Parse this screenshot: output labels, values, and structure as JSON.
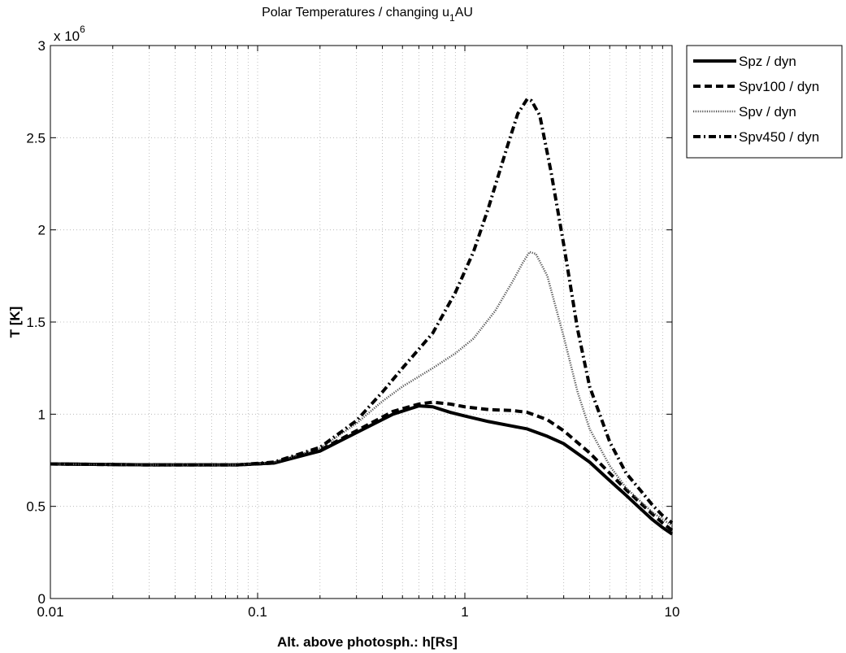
{
  "chart_data": {
    "type": "line",
    "title": "Polar Temperatures / changing u",
    "title_subscript": "1",
    "title_suffix": "AU",
    "xlabel": "Alt. above photosph.: h[Rs]",
    "ylabel": "T [K]",
    "x_scale": "log",
    "xlim": [
      0.01,
      10
    ],
    "ylim": [
      0,
      3000000
    ],
    "y_exponent_label": "x 10",
    "y_exponent": "6",
    "x_ticks": [
      {
        "value": 0.01,
        "label": "0.01"
      },
      {
        "value": 0.1,
        "label": "0.1"
      },
      {
        "value": 1,
        "label": "1"
      },
      {
        "value": 10,
        "label": "10"
      }
    ],
    "y_ticks": [
      {
        "value": 0,
        "label": "0"
      },
      {
        "value": 500000,
        "label": "0.5"
      },
      {
        "value": 1000000,
        "label": "1"
      },
      {
        "value": 1500000,
        "label": "1.5"
      },
      {
        "value": 2000000,
        "label": "2"
      },
      {
        "value": 2500000,
        "label": "2.5"
      },
      {
        "value": 3000000,
        "label": "3"
      }
    ],
    "grid": true,
    "legend_position": "outside-top-right",
    "series": [
      {
        "name": "Spz / dyn",
        "color": "#000000",
        "dash": "solid",
        "x": [
          0.01,
          0.03,
          0.08,
          0.12,
          0.2,
          0.3,
          0.45,
          0.6,
          0.7,
          0.85,
          1.0,
          1.3,
          1.7,
          2.0,
          2.5,
          3.0,
          4.0,
          5.0,
          6.0,
          7.0,
          8.0,
          9.0,
          10.0
        ],
        "y": [
          730000,
          725000,
          725000,
          735000,
          800000,
          900000,
          1000000,
          1045000,
          1040000,
          1010000,
          990000,
          960000,
          935000,
          920000,
          880000,
          840000,
          740000,
          640000,
          560000,
          490000,
          430000,
          385000,
          350000
        ]
      },
      {
        "name": "Spv100 / dyn",
        "color": "#000000",
        "dash": "dashed",
        "x": [
          0.01,
          0.03,
          0.08,
          0.12,
          0.2,
          0.3,
          0.45,
          0.6,
          0.7,
          0.85,
          1.0,
          1.3,
          1.7,
          2.0,
          2.5,
          3.0,
          4.0,
          5.0,
          6.0,
          7.0,
          8.0,
          9.0,
          10.0
        ],
        "y": [
          730000,
          725000,
          725000,
          735000,
          805000,
          910000,
          1015000,
          1055000,
          1065000,
          1055000,
          1040000,
          1025000,
          1020000,
          1010000,
          970000,
          910000,
          790000,
          680000,
          590000,
          520000,
          460000,
          410000,
          370000
        ]
      },
      {
        "name": "Spv / dyn",
        "color": "#555555",
        "dash": "dotted",
        "x": [
          0.01,
          0.03,
          0.08,
          0.12,
          0.2,
          0.3,
          0.4,
          0.5,
          0.7,
          0.9,
          1.1,
          1.4,
          1.7,
          1.9,
          2.05,
          2.2,
          2.5,
          3.0,
          3.5,
          4.0,
          5.0,
          6.0,
          7.0,
          8.0,
          9.0,
          10.0
        ],
        "y": [
          730000,
          725000,
          725000,
          740000,
          815000,
          950000,
          1070000,
          1150000,
          1250000,
          1330000,
          1410000,
          1560000,
          1720000,
          1820000,
          1880000,
          1870000,
          1750000,
          1420000,
          1120000,
          920000,
          720000,
          600000,
          530000,
          470000,
          430000,
          395000
        ]
      },
      {
        "name": "Spv450 / dyn",
        "color": "#000000",
        "dash": "dashdot",
        "x": [
          0.01,
          0.03,
          0.08,
          0.12,
          0.2,
          0.3,
          0.4,
          0.5,
          0.7,
          0.9,
          1.1,
          1.3,
          1.6,
          1.8,
          2.0,
          2.1,
          2.3,
          2.6,
          3.0,
          3.5,
          4.0,
          5.0,
          6.0,
          7.0,
          8.0,
          9.0,
          10.0
        ],
        "y": [
          730000,
          725000,
          725000,
          740000,
          820000,
          965000,
          1120000,
          1250000,
          1440000,
          1660000,
          1880000,
          2120000,
          2450000,
          2630000,
          2710000,
          2700000,
          2620000,
          2320000,
          1920000,
          1460000,
          1150000,
          850000,
          680000,
          590000,
          510000,
          450000,
          410000
        ]
      }
    ]
  }
}
